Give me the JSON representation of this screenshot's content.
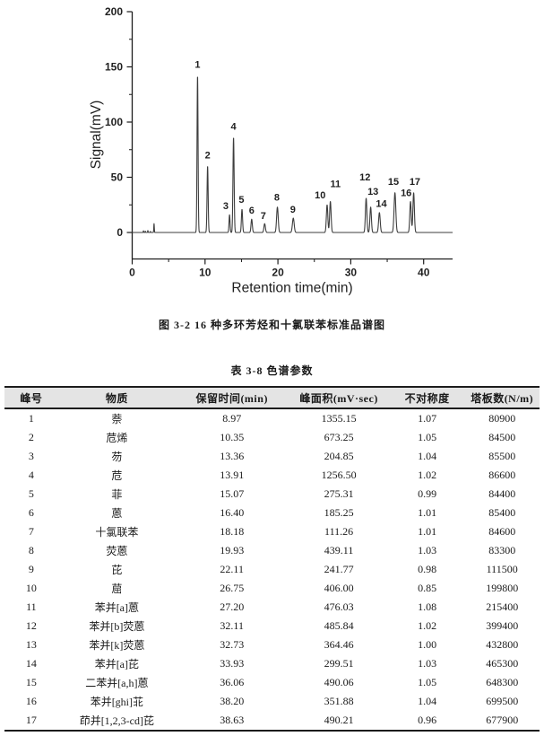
{
  "figure": {
    "caption": "图 3-2  16 种多环芳烃和十氯联苯标准品谱图"
  },
  "chart_data": {
    "type": "line",
    "title": "",
    "xlabel": "Retention time(min)",
    "ylabel": "Signal(mV)",
    "xlim": [
      0,
      44
    ],
    "ylim": [
      -23.5,
      200
    ],
    "x_ticks": [
      0,
      10,
      20,
      30,
      40
    ],
    "x_minor_ticks": [
      5,
      15,
      25,
      35
    ],
    "y_ticks": [
      0,
      50,
      100,
      150,
      200
    ],
    "y_minor_ticks": [
      25,
      75,
      125,
      175
    ],
    "grid": "off",
    "line_color": "#3d3d3d",
    "axis_color": "#1c1c1c",
    "peaks": [
      {
        "label": "1",
        "rt": 8.97,
        "height": 142,
        "sigma": 0.07,
        "label_t": 8.97,
        "label_mv": 149
      },
      {
        "label": "2",
        "rt": 10.35,
        "height": 60,
        "sigma": 0.075,
        "label_t": 10.35,
        "label_mv": 67
      },
      {
        "label": "3",
        "rt": 13.36,
        "height": 16,
        "sigma": 0.07,
        "label_t": 12.85,
        "label_mv": 21
      },
      {
        "label": "4",
        "rt": 13.91,
        "height": 86,
        "sigma": 0.08,
        "label_t": 13.91,
        "label_mv": 93
      },
      {
        "label": "5",
        "rt": 15.07,
        "height": 21,
        "sigma": 0.08,
        "label_t": 15.0,
        "label_mv": 27
      },
      {
        "label": "6",
        "rt": 16.4,
        "height": 12,
        "sigma": 0.09,
        "label_t": 16.4,
        "label_mv": 17
      },
      {
        "label": "7",
        "rt": 18.18,
        "height": 8,
        "sigma": 0.1,
        "label_t": 18.0,
        "label_mv": 12
      },
      {
        "label": "8",
        "rt": 19.93,
        "height": 23,
        "sigma": 0.11,
        "label_t": 19.85,
        "label_mv": 29
      },
      {
        "label": "9",
        "rt": 22.11,
        "height": 13,
        "sigma": 0.12,
        "label_t": 22.05,
        "label_mv": 18
      },
      {
        "label": "10",
        "rt": 26.75,
        "height": 25,
        "sigma": 0.1,
        "label_t": 25.8,
        "label_mv": 31
      },
      {
        "label": "11",
        "rt": 27.2,
        "height": 28,
        "sigma": 0.1,
        "label_t": 27.9,
        "label_mv": 41
      },
      {
        "label": "12",
        "rt": 32.11,
        "height": 31,
        "sigma": 0.1,
        "label_t": 31.95,
        "label_mv": 47
      },
      {
        "label": "13",
        "rt": 32.73,
        "height": 23,
        "sigma": 0.1,
        "label_t": 33.05,
        "label_mv": 34
      },
      {
        "label": "14",
        "rt": 33.93,
        "height": 18,
        "sigma": 0.11,
        "label_t": 34.2,
        "label_mv": 23
      },
      {
        "label": "15",
        "rt": 36.06,
        "height": 36,
        "sigma": 0.12,
        "label_t": 35.85,
        "label_mv": 43
      },
      {
        "label": "16",
        "rt": 38.2,
        "height": 28,
        "sigma": 0.1,
        "label_t": 37.6,
        "label_mv": 33
      },
      {
        "label": "17",
        "rt": 38.63,
        "height": 36,
        "sigma": 0.1,
        "label_t": 38.8,
        "label_mv": 43
      }
    ],
    "baseline_features": [
      {
        "rt": 1.55,
        "height": 1.6,
        "sigma": 0.03
      },
      {
        "rt": 1.8,
        "height": 1.2,
        "sigma": 0.03
      },
      {
        "rt": 2.15,
        "height": 1.8,
        "sigma": 0.03
      },
      {
        "rt": 2.5,
        "height": 1.0,
        "sigma": 0.03
      },
      {
        "rt": 3.0,
        "height": 8.0,
        "sigma": 0.035
      }
    ]
  },
  "table": {
    "title": "表 3-8  色谱参数",
    "columns": [
      "峰号",
      "物质",
      "保留时间(min)",
      "峰面积(mV·sec)",
      "不对称度",
      "塔板数(N/m)"
    ],
    "rows": [
      [
        "1",
        "萘",
        "8.97",
        "1355.15",
        "1.07",
        "80900"
      ],
      [
        "2",
        "苊烯",
        "10.35",
        "673.25",
        "1.05",
        "84500"
      ],
      [
        "3",
        "芴",
        "13.36",
        "204.85",
        "1.04",
        "85500"
      ],
      [
        "4",
        "苊",
        "13.91",
        "1256.50",
        "1.02",
        "86600"
      ],
      [
        "5",
        "菲",
        "15.07",
        "275.31",
        "0.99",
        "84400"
      ],
      [
        "6",
        "蒽",
        "16.40",
        "185.25",
        "1.01",
        "85400"
      ],
      [
        "7",
        "十氯联苯",
        "18.18",
        "111.26",
        "1.01",
        "84600"
      ],
      [
        "8",
        "荧蒽",
        "19.93",
        "439.11",
        "1.03",
        "83300"
      ],
      [
        "9",
        "芘",
        "22.11",
        "241.77",
        "0.98",
        "111500"
      ],
      [
        "10",
        "䓛",
        "26.75",
        "406.00",
        "0.85",
        "199800"
      ],
      [
        "11",
        "苯并[a]蒽",
        "27.20",
        "476.03",
        "1.08",
        "215400"
      ],
      [
        "12",
        "苯并[b]荧蒽",
        "32.11",
        "485.84",
        "1.02",
        "399400"
      ],
      [
        "13",
        "苯并[k]荧蒽",
        "32.73",
        "364.46",
        "1.00",
        "432800"
      ],
      [
        "14",
        "苯并[a]芘",
        "33.93",
        "299.51",
        "1.03",
        "465300"
      ],
      [
        "15",
        "二苯并[a,h]蒽",
        "36.06",
        "490.06",
        "1.05",
        "648300"
      ],
      [
        "16",
        "苯并[ghi]苝",
        "38.20",
        "351.88",
        "1.04",
        "699500"
      ],
      [
        "17",
        "茚并[1,2,3-cd]芘",
        "38.63",
        "490.21",
        "0.96",
        "677900"
      ]
    ]
  }
}
